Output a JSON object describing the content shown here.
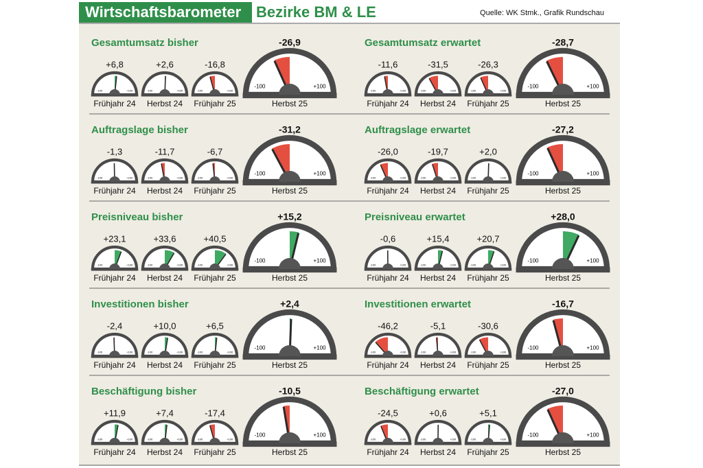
{
  "header": {
    "title": "Wirtschaftsbarometer",
    "subtitle": "Bezirke BM & LE",
    "source": "Quelle: WK Stmk., Grafik Rundschau"
  },
  "gauge_ticks": [
    -100,
    {
      "value": 100,
      "label": "+100"
    }
  ],
  "colors": {
    "negative": "#e1301f",
    "positive": "#1e9a48"
  },
  "panels": [
    {
      "title": "Gesamtumsatz bisher",
      "categories": [
        "Frühjahr 24",
        "Herbst 24",
        "Frühjahr 25",
        "Herbst 25"
      ],
      "values": [
        6.8,
        2.6,
        -16.8,
        -26.9
      ],
      "value_labels": [
        "+6,8",
        "+2,6",
        "-16,8",
        "-26,9"
      ]
    },
    {
      "title": "Gesamtumsatz erwartet",
      "categories": [
        "Frühjahr 24",
        "Herbst 24",
        "Frühjahr 25",
        "Herbst 25"
      ],
      "values": [
        -11.6,
        -31.5,
        -26.3,
        -28.7
      ],
      "value_labels": [
        "-11,6",
        "-31,5",
        "-26,3",
        "-28,7"
      ]
    },
    {
      "title": "Auftragslage bisher",
      "categories": [
        "Frühjahr 24",
        "Herbst 24",
        "Frühjahr 25",
        "Herbst 25"
      ],
      "values": [
        -1.3,
        -11.7,
        -6.7,
        -31.2
      ],
      "value_labels": [
        "-1,3",
        "-11,7",
        "-6,7",
        "-31,2"
      ]
    },
    {
      "title": "Auftragslage erwartet",
      "categories": [
        "Frühjahr 24",
        "Herbst 24",
        "Frühjahr 25",
        "Herbst 25"
      ],
      "values": [
        -26.0,
        -19.7,
        2.0,
        -27.2
      ],
      "value_labels": [
        "-26,0",
        "-19,7",
        "+2,0",
        "-27,2"
      ]
    },
    {
      "title": "Preisniveau bisher",
      "categories": [
        "Frühjahr 24",
        "Herbst 24",
        "Frühjahr 25",
        "Herbst 25"
      ],
      "values": [
        23.1,
        33.6,
        40.5,
        15.2
      ],
      "value_labels": [
        "+23,1",
        "+33,6",
        "+40,5",
        "+15,2"
      ]
    },
    {
      "title": "Preisniveau erwartet",
      "categories": [
        "Frühjahr 24",
        "Herbst 24",
        "Frühjahr 25",
        "Herbst 25"
      ],
      "values": [
        -0.6,
        15.4,
        20.7,
        28.0
      ],
      "value_labels": [
        "-0,6",
        "+15,4",
        "+20,7",
        "+28,0"
      ]
    },
    {
      "title": "Investitionen bisher",
      "categories": [
        "Frühjahr 24",
        "Herbst 24",
        "Frühjahr 25",
        "Herbst 25"
      ],
      "values": [
        -2.4,
        10.0,
        6.5,
        2.4
      ],
      "value_labels": [
        "-2,4",
        "+10,0",
        "+6,5",
        "+2,4"
      ]
    },
    {
      "title": "Investitionen erwartet",
      "categories": [
        "Frühjahr 24",
        "Herbst 24",
        "Frühjahr 25",
        "Herbst 25"
      ],
      "values": [
        -46.2,
        -5.1,
        -30.6,
        -16.7
      ],
      "value_labels": [
        "-46,2",
        "-5,1",
        "-30,6",
        "-16,7"
      ]
    },
    {
      "title": "Beschäftigung bisher",
      "categories": [
        "Frühjahr 24",
        "Herbst 24",
        "Frühjahr 25",
        "Herbst 25"
      ],
      "values": [
        11.9,
        7.4,
        -17.4,
        -10.5
      ],
      "value_labels": [
        "+11,9",
        "+7,4",
        "-17,4",
        "-10,5"
      ]
    },
    {
      "title": "Beschäftigung erwartet",
      "categories": [
        "Frühjahr 24",
        "Herbst 24",
        "Frühjahr 25",
        "Herbst 25"
      ],
      "values": [
        -24.5,
        0.6,
        5.1,
        -27.0
      ],
      "value_labels": [
        "-24,5",
        "+0,6",
        "+5,1",
        "-27,0"
      ]
    }
  ]
}
